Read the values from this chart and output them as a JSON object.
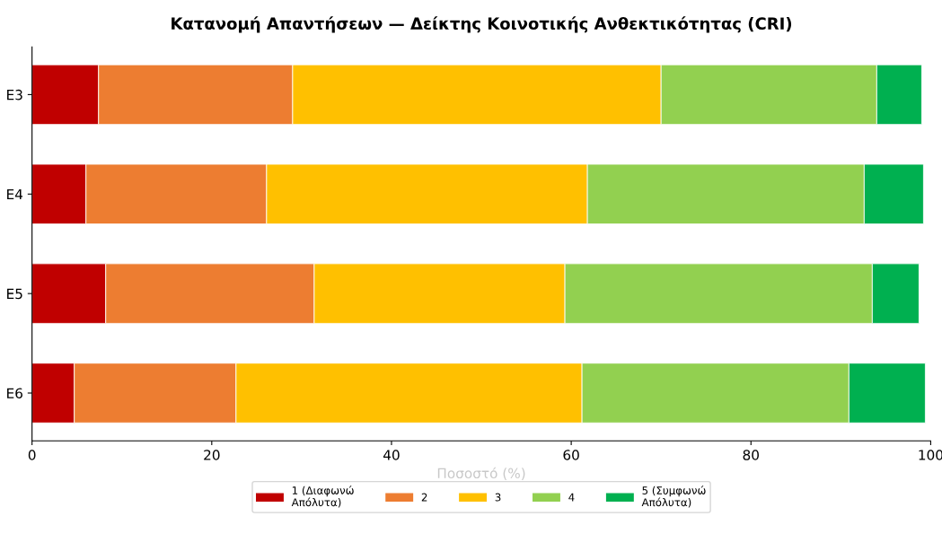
{
  "chart_data": {
    "type": "bar",
    "orientation": "horizontal",
    "stacked": true,
    "title": "Κατανομή Απαντήσεων — Δείκτης Κοινοτικής Ανθεκτικότητας (CRI)",
    "xlabel": "Ποσοστό (%)",
    "categories": [
      "E3",
      "E4",
      "E5",
      "E6"
    ],
    "series": [
      {
        "name": "1 (Διαφωνώ\nΑπόλυτα)",
        "color": "#c00000",
        "values": [
          7.4,
          6.0,
          8.2,
          4.7
        ]
      },
      {
        "name": "2",
        "color": "#ed7d31",
        "values": [
          21.6,
          20.1,
          23.2,
          18.0
        ]
      },
      {
        "name": "3",
        "color": "#ffc000",
        "values": [
          41.0,
          35.7,
          27.9,
          38.5
        ]
      },
      {
        "name": "4",
        "color": "#92d050",
        "values": [
          24.0,
          30.8,
          34.2,
          29.7
        ]
      },
      {
        "name": "5 (Συμφωνώ\nΑπόλυτα)",
        "color": "#00b050",
        "values": [
          5.0,
          6.6,
          5.2,
          8.5
        ]
      }
    ],
    "xlim": [
      0,
      100
    ],
    "xticks": [
      0,
      20,
      40,
      60,
      80,
      100
    ],
    "grid": false,
    "legend": "bottom"
  }
}
